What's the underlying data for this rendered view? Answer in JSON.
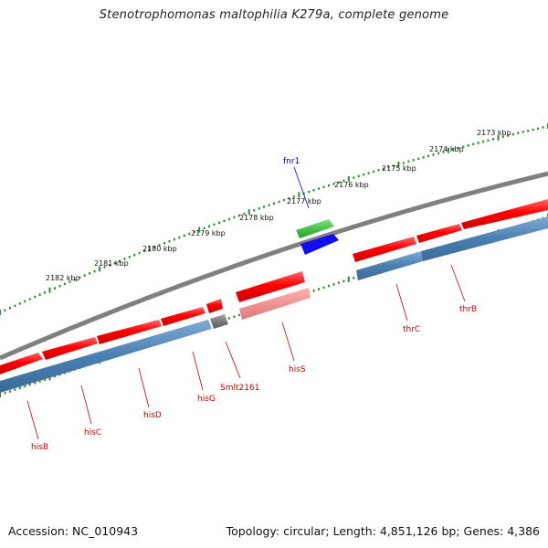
{
  "title": "Stenotrophomonas maltophilia K279a, complete genome",
  "footer": {
    "accession": "Accession: NC_010943",
    "summary": "Topology: circular; Length: 4,851,126 bp; Genes: 4,386"
  },
  "kbp_ticks": [
    "2182 kbp",
    "2181 kbp",
    "2180 kbp",
    "2179 kbp",
    "2178 kbp",
    "2177 kbp",
    "2176 kbp",
    "2175 kbp",
    "2174 kbp",
    "2173 kbp"
  ],
  "genes": [
    {
      "id": "hisB",
      "label": "hisB",
      "color": "#c00000"
    },
    {
      "id": "hisC",
      "label": "hisC",
      "color": "#c00000"
    },
    {
      "id": "hisD",
      "label": "hisD",
      "color": "#c00000"
    },
    {
      "id": "hisG",
      "label": "hisG",
      "color": "#c00000"
    },
    {
      "id": "smlt2161",
      "label": "Smlt2161",
      "color": "#c00000"
    },
    {
      "id": "hisS",
      "label": "hisS",
      "color": "#c00000"
    },
    {
      "id": "thrC",
      "label": "thrC",
      "color": "#c00000"
    },
    {
      "id": "thrB",
      "label": "thrB",
      "color": "#c00000"
    },
    {
      "id": "fnr1",
      "label": "fnr1",
      "color": "#0000cc"
    }
  ],
  "colors": {
    "cds_red": "#ff1a1a",
    "cds_pink": "#f08080",
    "gene_blue": "#4f86b8",
    "pseudo_grey": "#6e6e6e",
    "rna_green": "#33bb33",
    "rna_blue": "#1010ee",
    "backbone": "#808080",
    "tick_green": "#2e8b2e"
  }
}
